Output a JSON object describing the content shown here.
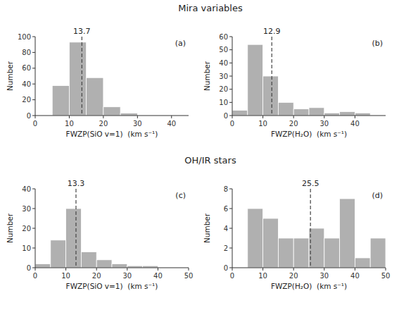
{
  "chart_data": [
    {
      "type": "histogram",
      "title": "Mira variables",
      "annotations": [
        "(a)"
      ],
      "bins": [
        0,
        5,
        10,
        15,
        20,
        25,
        30,
        35,
        40,
        45
      ],
      "values": [
        0,
        38,
        93,
        48,
        11,
        3,
        0,
        0,
        0
      ],
      "average": 13.7,
      "color": "#b0b0b0",
      "xlabel": "FWZP(SiO v=1)  (km s⁻¹)",
      "ylabel": "Number",
      "xlim": [
        0,
        45
      ],
      "xticks": [
        0,
        10,
        20,
        30,
        40
      ],
      "ylim": [
        0,
        100
      ],
      "yticks": [
        0,
        20,
        40,
        60,
        80,
        100
      ],
      "grid": false
    },
    {
      "type": "histogram",
      "annotations": [
        "(b)"
      ],
      "bins": [
        0,
        5,
        10,
        15,
        20,
        25,
        30,
        35,
        40,
        45,
        50
      ],
      "values": [
        4,
        54,
        30,
        10,
        5,
        6,
        2,
        3,
        2,
        0
      ],
      "average": 12.9,
      "color": "#b0b0b0",
      "xlabel": "FWZP(H₂O)  (km s⁻¹)",
      "ylabel": "Number",
      "xlim": [
        0,
        50
      ],
      "xticks": [
        0,
        10,
        20,
        30,
        40
      ],
      "ylim": [
        0,
        60
      ],
      "yticks": [
        0,
        10,
        20,
        30,
        40,
        50,
        60
      ],
      "grid": false
    },
    {
      "type": "histogram",
      "title": "OH/IR stars",
      "annotations": [
        "(c)"
      ],
      "bins": [
        0,
        5,
        10,
        15,
        20,
        25,
        30,
        35,
        40,
        45,
        50
      ],
      "values": [
        2,
        14,
        30,
        8,
        4,
        2,
        1,
        1,
        0,
        0
      ],
      "average": 13.3,
      "color": "#b0b0b0",
      "xlabel": "FWZP(SiO v=1)  (km s⁻¹)",
      "ylabel": "Number",
      "xlim": [
        0,
        50
      ],
      "xticks": [
        0,
        10,
        20,
        30,
        40,
        50
      ],
      "ylim": [
        0,
        40
      ],
      "yticks": [
        0,
        10,
        20,
        30,
        40
      ],
      "grid": false
    },
    {
      "type": "histogram",
      "annotations": [
        "(d)"
      ],
      "bins": [
        0,
        5,
        10,
        15,
        20,
        25,
        30,
        35,
        40,
        45,
        50
      ],
      "values": [
        0,
        6,
        5,
        3,
        3,
        4,
        3,
        7,
        1,
        3
      ],
      "average": 25.5,
      "color": "#b0b0b0",
      "xlabel": "FWZP(H₂O)  (km s⁻¹)",
      "ylabel": "Number",
      "xlim": [
        0,
        50
      ],
      "xticks": [
        0,
        10,
        20,
        30,
        40,
        50
      ],
      "ylim": [
        0,
        8
      ],
      "yticks": [
        0,
        2,
        4,
        6,
        8
      ],
      "grid": false
    }
  ]
}
